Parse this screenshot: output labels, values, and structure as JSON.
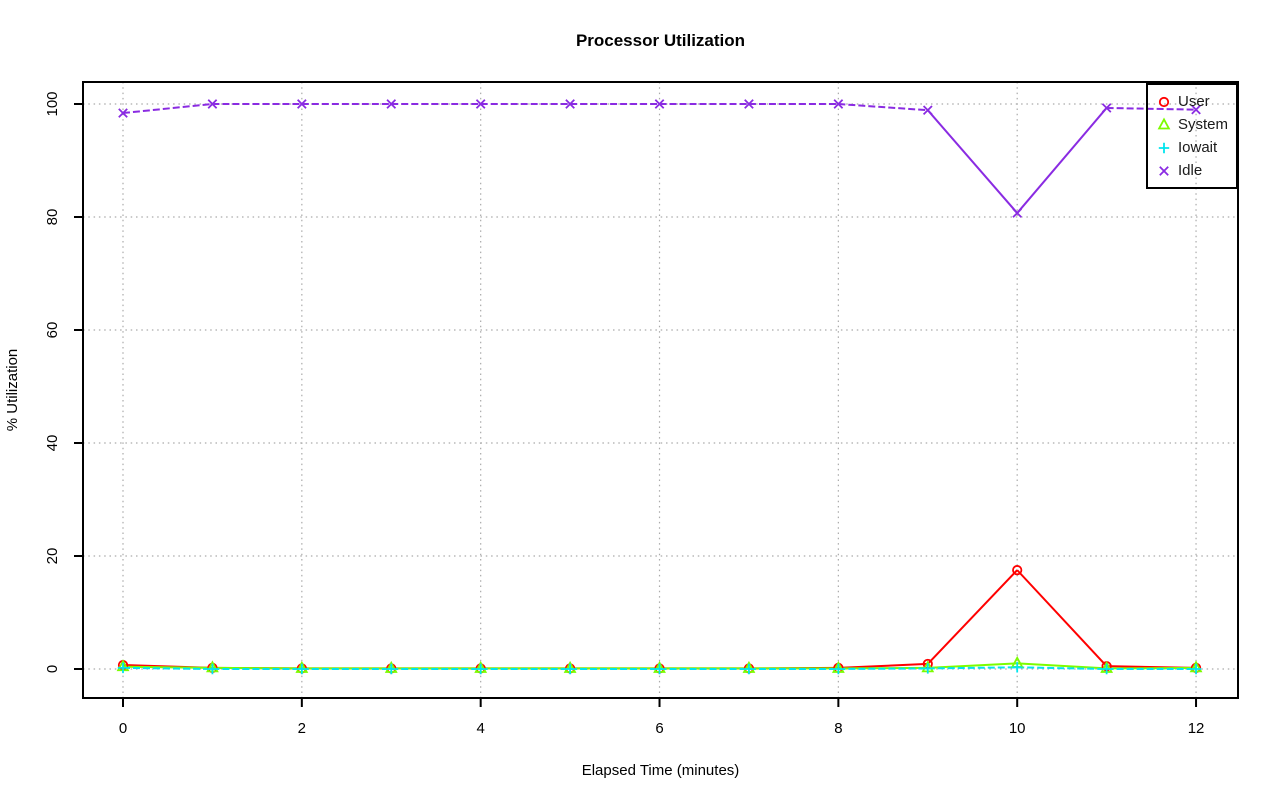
{
  "page": {
    "background": "#ffffff"
  },
  "chart_data": {
    "type": "line",
    "title": "Processor Utilization",
    "xlabel": "Elapsed Time (minutes)",
    "ylabel": "% Utilization",
    "x": [
      0,
      1,
      2,
      3,
      4,
      5,
      6,
      7,
      8,
      9,
      10,
      11,
      12
    ],
    "xticks": [
      0,
      2,
      4,
      6,
      8,
      10,
      12
    ],
    "yticks": [
      0,
      20,
      40,
      60,
      80,
      100
    ],
    "xlim": [
      -0.45,
      12.47
    ],
    "ylim": [
      -5.1,
      103.9
    ],
    "grid": true,
    "grid_color": "#aaaaaa",
    "axis_color": "#000000",
    "series": [
      {
        "name": "User",
        "color": "#ff0000",
        "marker": "circle",
        "line_style": "solid",
        "values": [
          0.7,
          0.2,
          0.1,
          0.1,
          0.1,
          0.1,
          0.1,
          0.1,
          0.2,
          0.9,
          17.5,
          0.5,
          0.2
        ]
      },
      {
        "name": "System",
        "color": "#7cfc00",
        "marker": "triangle",
        "line_style": "solid",
        "values": [
          0.4,
          0.2,
          0.1,
          0.1,
          0.1,
          0.1,
          0.1,
          0.1,
          0.1,
          0.2,
          1.0,
          0.1,
          0.2
        ]
      },
      {
        "name": "Iowait",
        "color": "#00e5ee",
        "marker": "plus",
        "line_style": "dashed",
        "values": [
          0.2,
          0.0,
          0.0,
          0.0,
          0.0,
          0.0,
          0.0,
          0.0,
          0.0,
          0.1,
          0.3,
          0.0,
          0.0
        ]
      },
      {
        "name": "Idle",
        "color": "#8a2be2",
        "marker": "x",
        "line_style": "dashed_flat_solid_steep",
        "values": [
          98.4,
          100,
          100,
          100,
          100,
          100,
          100,
          100,
          100,
          98.9,
          80.7,
          99.3,
          99.0
        ]
      }
    ],
    "legend": {
      "position": "topright",
      "entries": [
        "User",
        "System",
        "Iowait",
        "Idle"
      ]
    }
  }
}
